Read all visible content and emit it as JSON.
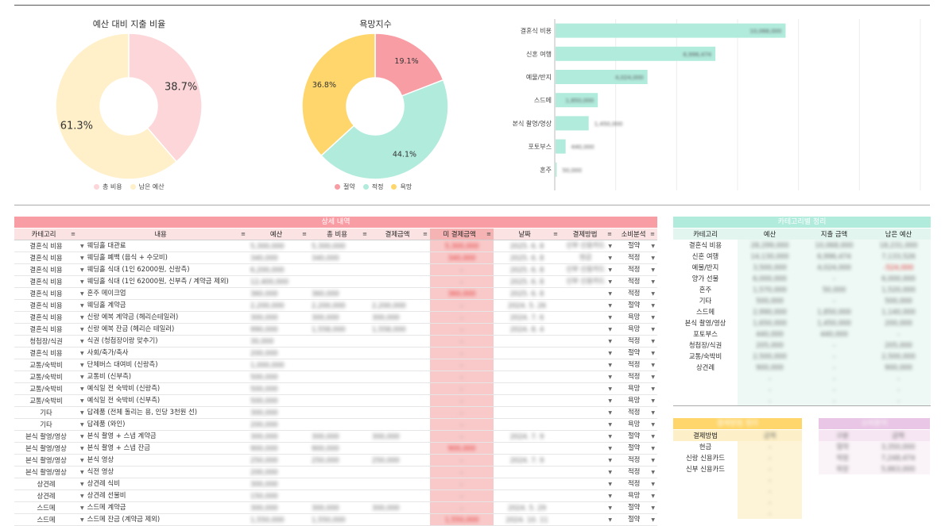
{
  "charts": {
    "budget_pie": {
      "title": "예산 대비 지출 비율",
      "legend": [
        "총 비용",
        "남은 예산"
      ]
    },
    "desire_pie": {
      "title": "욕망지수",
      "legend": [
        "절약",
        "적정",
        "욕망"
      ]
    },
    "bar": {
      "title": ""
    }
  },
  "chart_data": [
    {
      "type": "pie",
      "title": "예산 대비 지출 비율",
      "labels": [
        "총 비용",
        "남은 예산"
      ],
      "values": [
        38.7,
        61.3
      ],
      "value_labels": [
        "38.7%",
        "61.3%"
      ],
      "colors": [
        "#fcd6d9",
        "#fff0c9"
      ]
    },
    {
      "type": "pie",
      "title": "욕망지수",
      "labels": [
        "절약",
        "적정",
        "욕망"
      ],
      "values": [
        19.1,
        44.1,
        36.8
      ],
      "value_labels": [
        "19.1%",
        "44.1%",
        "36.8%"
      ],
      "colors": [
        "#f99da5",
        "#b1ebdc",
        "#fed66b"
      ]
    },
    {
      "type": "bar",
      "orientation": "horizontal",
      "title": "",
      "categories": [
        "결혼식 비용",
        "신혼 여행",
        "예물/반지",
        "스드메",
        "본식 촬영/영상",
        "포토부스",
        "혼주"
      ],
      "values": [
        10068000,
        6996474,
        4024000,
        1850000,
        1450000,
        440000,
        50000
      ],
      "value_labels": [
        "10,068,000",
        "6,996,474",
        "4,024,000",
        "1,850,000",
        "1,450,000",
        "440,000",
        "50,000"
      ],
      "xlim": [
        0,
        16000000
      ],
      "color": "#b1ebdc"
    }
  ],
  "detail": {
    "banner": "상세 내역",
    "headers": [
      "카테고리",
      "내용",
      "예산",
      "총 비용",
      "결제금액",
      "미 결제금액",
      "날짜",
      "결제방법",
      "소비분석"
    ],
    "rows": [
      [
        "결혼식 비용",
        "웨딩홀 대관료",
        "5,300,000",
        "5,300,000",
        "",
        "5,300,000",
        "2025. 6. 8",
        "신부 신용카드",
        "절약"
      ],
      [
        "결혼식 비용",
        "웨딩홀 폐백 (음식 + 수모비)",
        "340,000",
        "340,000",
        "",
        "340,000",
        "2025. 6. 8",
        "현금",
        "적정"
      ],
      [
        "결혼식 비용",
        "웨딩홀 식대 (1인 62000원, 신랑측)",
        "6,200,000",
        "",
        "",
        "-",
        "2025. 6. 8",
        "신부 신용카드",
        "적정"
      ],
      [
        "결혼식 비용",
        "웨딩홀 식대 (1인 62000원, 신부측 / 계약금 제외)",
        "12,400,000",
        "",
        "",
        "-",
        "2025. 6. 8",
        "신부 신용카드",
        "적정"
      ],
      [
        "결혼식 비용",
        "혼주 메이크업",
        "360,000",
        "360,000",
        "",
        "360,000",
        "2025. 6. 8",
        "",
        "적정"
      ],
      [
        "결혼식 비용",
        "웨딩홀 계약금",
        "2,200,000",
        "2,200,000",
        "2,200,000",
        "-",
        "2024. 5. 26",
        "",
        "절약"
      ],
      [
        "결혼식 비용",
        "신랑 예복 계약금 (헤리슨테일러)",
        "300,000",
        "300,000",
        "300,000",
        "-",
        "2024. 7. 6",
        "",
        "욕망"
      ],
      [
        "결혼식 비용",
        "신랑 예복 잔금 (헤리슨 테일러)",
        "990,000",
        "1,558,000",
        "1,558,000",
        "-",
        "2024. 8. 4",
        "",
        "욕망"
      ],
      [
        "청첩장/식권",
        "식권 (청첩장이랑 맞추기)",
        "30,000",
        "",
        "",
        "-",
        "",
        "",
        "적정"
      ],
      [
        "결혼식 비용",
        "사회/축가/축사",
        "200,000",
        "",
        "",
        "-",
        "",
        "",
        "절약"
      ],
      [
        "교통/숙박비",
        "단체버스 대여비 (신랑측)",
        "1,000,000",
        "",
        "",
        "-",
        "",
        "",
        "적정"
      ],
      [
        "교통/숙박비",
        "교통비 (신부측)",
        "500,000",
        "",
        "",
        "-",
        "",
        "",
        "적정"
      ],
      [
        "교통/숙박비",
        "예식일 전 숙박비 (신랑측)",
        "500,000",
        "",
        "",
        "-",
        "",
        "",
        "욕망"
      ],
      [
        "교통/숙박비",
        "예식일 전 숙박비 (신부측)",
        "500,000",
        "",
        "",
        "-",
        "",
        "",
        "욕망"
      ],
      [
        "기타",
        "답례품 (전체 돌리는 용, 인당 3천원 선)",
        "300,000",
        "",
        "",
        "-",
        "",
        "",
        "적정"
      ],
      [
        "기타",
        "답례품 (와인)",
        "200,000",
        "",
        "",
        "-",
        "",
        "",
        "욕망"
      ],
      [
        "본식 촬영/영상",
        "본식 촬영 + 스냅 계약금",
        "300,000",
        "300,000",
        "300,000",
        "-",
        "2024. 7. 9",
        "",
        "절약"
      ],
      [
        "본식 촬영/영상",
        "본식 촬영 + 스냅 잔금",
        "900,000",
        "900,000",
        "",
        "900,000",
        "",
        "",
        "절약"
      ],
      [
        "본식 촬영/영상",
        "본식 영상",
        "250,000",
        "250,000",
        "250,000",
        "-",
        "2024. 7. 9",
        "",
        "적정"
      ],
      [
        "본식 촬영/영상",
        "식전 영상",
        "200,000",
        "",
        "",
        "-",
        "",
        "",
        "적정"
      ],
      [
        "상견례",
        "상견례 식비",
        "300,000",
        "",
        "",
        "-",
        "",
        "",
        "적정"
      ],
      [
        "상견례",
        "상견례 선물비",
        "150,000",
        "",
        "",
        "-",
        "",
        "",
        "욕망"
      ],
      [
        "스드메",
        "스드메 계약금",
        "300,000",
        "300,000",
        "300,000",
        "-",
        "2024. 5. 29",
        "",
        "절약"
      ],
      [
        "스드메",
        "스드메 잔금 (계약금 제외)",
        "1,550,000",
        "1,550,000",
        "",
        "1,550,000",
        "2024. 10. 11",
        "",
        "절약"
      ]
    ]
  },
  "category_summary": {
    "banner": "카테고리별 정리",
    "headers": [
      "카테고리",
      "예산",
      "지출 금액",
      "남은 예산"
    ],
    "rows": [
      [
        "결혼식 비용",
        "28,299,000",
        "10,068,000",
        "18,231,000"
      ],
      [
        "신혼 여행",
        "14,130,000",
        "6,996,474",
        "7,133,526"
      ],
      [
        "예물/반지",
        "3,500,000",
        "4,024,000",
        "-524,000"
      ],
      [
        "양가 선물",
        "6,000,000",
        "-",
        "6,000,000"
      ],
      [
        "혼주",
        "1,570,000",
        "50,000",
        "1,520,000"
      ],
      [
        "기타",
        "500,000",
        "-",
        "500,000"
      ],
      [
        "스드메",
        "2,990,000",
        "1,850,000",
        "1,140,000"
      ],
      [
        "본식 촬영/영상",
        "1,650,000",
        "1,450,000",
        "200,000"
      ],
      [
        "포토부스",
        "440,000",
        "440,000",
        "-"
      ],
      [
        "청첩장/식권",
        "205,000",
        "-",
        "205,000"
      ],
      [
        "교통/숙박비",
        "2,500,000",
        "-",
        "2,500,000"
      ],
      [
        "상견례",
        "900,000",
        "-",
        "900,000"
      ],
      [
        "",
        "-",
        "-",
        "-"
      ],
      [
        "",
        "-",
        "-",
        "-"
      ],
      [
        "",
        "-",
        "-",
        "-"
      ]
    ]
  },
  "payment_summary": {
    "banner": "결제방법 정리",
    "headers": [
      "결제방법",
      "금액"
    ],
    "rows": [
      [
        "현금",
        "-"
      ],
      [
        "신랑 신용카드",
        "-"
      ],
      [
        "신부 신용카드",
        "-"
      ],
      [
        "",
        "-"
      ],
      [
        "",
        "-"
      ],
      [
        "",
        "-"
      ],
      [
        "",
        "-"
      ]
    ]
  },
  "consumption_summary": {
    "banner": "소비분석",
    "headers": [
      "구분",
      "금액"
    ],
    "rows": [
      [
        "절약",
        "3,350,000"
      ],
      [
        "적정",
        "7,248,474"
      ],
      [
        "욕망",
        "5,863,000"
      ]
    ]
  }
}
